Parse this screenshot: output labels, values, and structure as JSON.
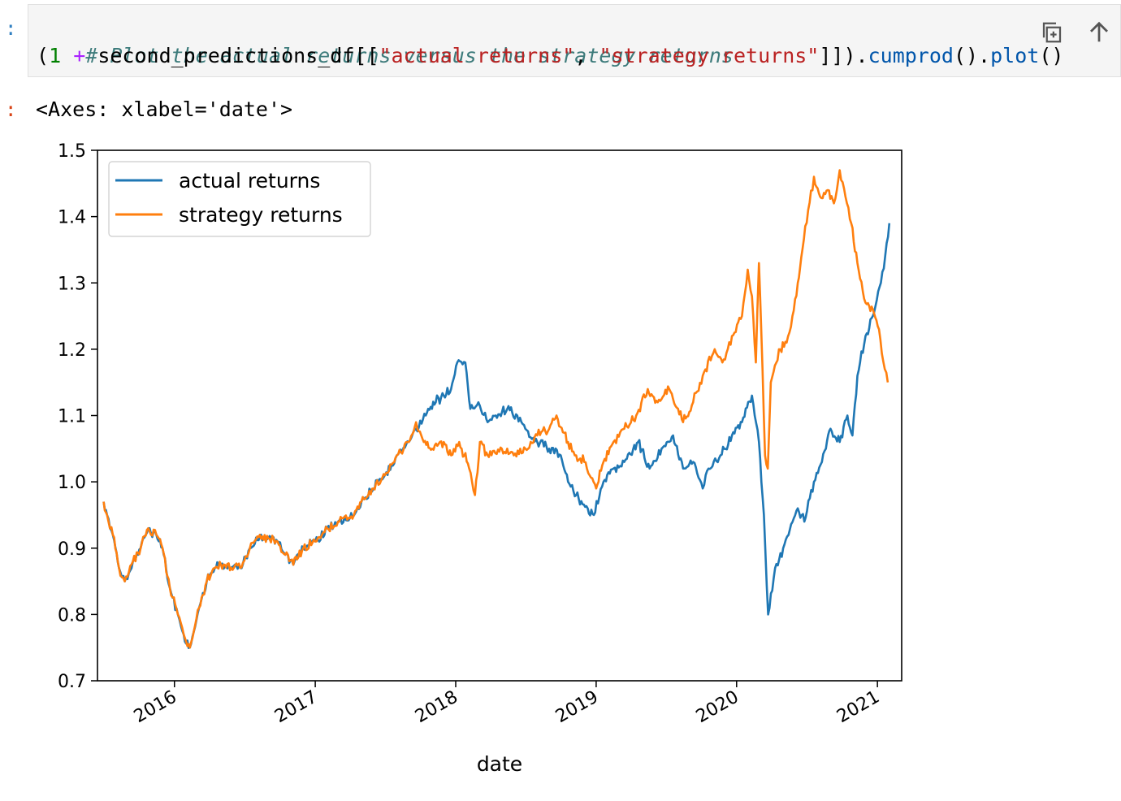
{
  "cell": {
    "input_prompt": ":",
    "output_prompt": ":",
    "code": {
      "comment": "# Plot the actual returns versus the strategy returns",
      "open_paren": "(",
      "one": "1",
      "plus": "+",
      "df": "second_predictions_df[[",
      "str_actual": "\"actual returns\"",
      "comma": ", ",
      "str_strategy": "\"strategy returns\"",
      "close_brackets": "]]).",
      "cumprod": "cumprod",
      "call_dot": "().",
      "plot": "plot",
      "call_end": "()"
    },
    "toolbar": {
      "copy_icon": "copy-icon",
      "move_up_icon": "arrow-up-icon"
    },
    "output_text": "<Axes: xlabel='date'>"
  },
  "chart_data": {
    "type": "line",
    "xlabel": "date",
    "ylabel": "",
    "title": "",
    "ylim": [
      0.7,
      1.5
    ],
    "yticks": [
      "0.7",
      "0.8",
      "0.9",
      "1.0",
      "1.1",
      "1.2",
      "1.3",
      "1.4",
      "1.5"
    ],
    "xticks": [
      "2016",
      "2017",
      "2018",
      "2019",
      "2020",
      "2021"
    ],
    "legend": "upper-left",
    "grid": false,
    "series": [
      {
        "name": "actual returns",
        "color": "#1f77b4",
        "points": [
          [
            "2015-07-01",
            0.97
          ],
          [
            "2015-07-10",
            0.95
          ],
          [
            "2015-07-25",
            0.92
          ],
          [
            "2015-08-10",
            0.87
          ],
          [
            "2015-08-25",
            0.85
          ],
          [
            "2015-09-15",
            0.88
          ],
          [
            "2015-10-05",
            0.9
          ],
          [
            "2015-10-25",
            0.93
          ],
          [
            "2015-11-15",
            0.92
          ],
          [
            "2015-12-01",
            0.9
          ],
          [
            "2015-12-20",
            0.84
          ],
          [
            "2016-01-10",
            0.8
          ],
          [
            "2016-01-25",
            0.77
          ],
          [
            "2016-02-10",
            0.75
          ],
          [
            "2016-03-05",
            0.81
          ],
          [
            "2016-03-25",
            0.85
          ],
          [
            "2016-04-15",
            0.87
          ],
          [
            "2016-05-01",
            0.875
          ],
          [
            "2016-06-20",
            0.87
          ],
          [
            "2016-07-15",
            0.9
          ],
          [
            "2016-08-10",
            0.92
          ],
          [
            "2016-09-01",
            0.915
          ],
          [
            "2016-09-25",
            0.91
          ],
          [
            "2016-10-15",
            0.89
          ],
          [
            "2016-11-05",
            0.875
          ],
          [
            "2016-12-01",
            0.9
          ],
          [
            "2017-01-01",
            0.91
          ],
          [
            "2017-02-01",
            0.93
          ],
          [
            "2017-03-01",
            0.94
          ],
          [
            "2017-04-01",
            0.945
          ],
          [
            "2017-05-01",
            0.97
          ],
          [
            "2017-06-01",
            0.99
          ],
          [
            "2017-07-01",
            1.01
          ],
          [
            "2017-08-01",
            1.04
          ],
          [
            "2017-09-01",
            1.06
          ],
          [
            "2017-09-20",
            1.08
          ],
          [
            "2017-10-15",
            1.1
          ],
          [
            "2017-11-10",
            1.12
          ],
          [
            "2017-12-01",
            1.13
          ],
          [
            "2017-12-20",
            1.14
          ],
          [
            "2018-01-05",
            1.18
          ],
          [
            "2018-01-26",
            1.18
          ],
          [
            "2018-02-08",
            1.11
          ],
          [
            "2018-03-01",
            1.12
          ],
          [
            "2018-03-25",
            1.09
          ],
          [
            "2018-04-15",
            1.1
          ],
          [
            "2018-05-15",
            1.11
          ],
          [
            "2018-06-10",
            1.1
          ],
          [
            "2018-07-01",
            1.08
          ],
          [
            "2018-08-01",
            1.06
          ],
          [
            "2018-09-01",
            1.05
          ],
          [
            "2018-10-01",
            1.04
          ],
          [
            "2018-10-20",
            1.0
          ],
          [
            "2018-11-10",
            0.98
          ],
          [
            "2018-12-10",
            0.96
          ],
          [
            "2018-12-26",
            0.95
          ],
          [
            "2019-01-20",
            1.0
          ],
          [
            "2019-02-15",
            1.02
          ],
          [
            "2019-03-15",
            1.03
          ],
          [
            "2019-04-20",
            1.06
          ],
          [
            "2019-05-20",
            1.02
          ],
          [
            "2019-06-20",
            1.05
          ],
          [
            "2019-07-20",
            1.07
          ],
          [
            "2019-08-15",
            1.02
          ],
          [
            "2019-09-10",
            1.03
          ],
          [
            "2019-10-05",
            0.99
          ],
          [
            "2019-10-20",
            1.02
          ],
          [
            "2019-11-20",
            1.04
          ],
          [
            "2019-12-20",
            1.07
          ],
          [
            "2020-01-15",
            1.09
          ],
          [
            "2020-02-10",
            1.13
          ],
          [
            "2020-02-28",
            1.06
          ],
          [
            "2020-03-12",
            0.95
          ],
          [
            "2020-03-23",
            0.8
          ],
          [
            "2020-04-10",
            0.87
          ],
          [
            "2020-05-01",
            0.9
          ],
          [
            "2020-06-08",
            0.96
          ],
          [
            "2020-06-25",
            0.94
          ],
          [
            "2020-07-20",
            1.0
          ],
          [
            "2020-08-20",
            1.05
          ],
          [
            "2020-09-01",
            1.08
          ],
          [
            "2020-09-25",
            1.06
          ],
          [
            "2020-10-15",
            1.1
          ],
          [
            "2020-10-28",
            1.07
          ],
          [
            "2020-11-10",
            1.16
          ],
          [
            "2020-12-01",
            1.22
          ],
          [
            "2020-12-20",
            1.25
          ],
          [
            "2021-01-10",
            1.3
          ],
          [
            "2021-01-25",
            1.36
          ],
          [
            "2021-02-01",
            1.39
          ]
        ]
      },
      {
        "name": "strategy returns",
        "color": "#ff7f0e",
        "points": [
          [
            "2015-07-01",
            0.97
          ],
          [
            "2015-07-10",
            0.95
          ],
          [
            "2015-07-25",
            0.92
          ],
          [
            "2015-08-10",
            0.87
          ],
          [
            "2015-08-25",
            0.85
          ],
          [
            "2015-09-15",
            0.88
          ],
          [
            "2015-10-05",
            0.9
          ],
          [
            "2015-10-25",
            0.93
          ],
          [
            "2015-11-15",
            0.92
          ],
          [
            "2015-12-01",
            0.9
          ],
          [
            "2015-12-20",
            0.84
          ],
          [
            "2016-01-10",
            0.8
          ],
          [
            "2016-01-25",
            0.77
          ],
          [
            "2016-02-10",
            0.75
          ],
          [
            "2016-03-05",
            0.81
          ],
          [
            "2016-03-25",
            0.85
          ],
          [
            "2016-04-15",
            0.87
          ],
          [
            "2016-05-01",
            0.875
          ],
          [
            "2016-06-20",
            0.87
          ],
          [
            "2016-07-15",
            0.9
          ],
          [
            "2016-08-10",
            0.92
          ],
          [
            "2016-09-01",
            0.915
          ],
          [
            "2016-09-25",
            0.91
          ],
          [
            "2016-10-15",
            0.89
          ],
          [
            "2016-11-05",
            0.875
          ],
          [
            "2016-12-01",
            0.9
          ],
          [
            "2017-01-01",
            0.91
          ],
          [
            "2017-02-01",
            0.93
          ],
          [
            "2017-03-01",
            0.94
          ],
          [
            "2017-04-01",
            0.945
          ],
          [
            "2017-05-01",
            0.97
          ],
          [
            "2017-06-01",
            0.99
          ],
          [
            "2017-07-01",
            1.01
          ],
          [
            "2017-08-01",
            1.04
          ],
          [
            "2017-09-01",
            1.06
          ],
          [
            "2017-09-20",
            1.09
          ],
          [
            "2017-10-10",
            1.06
          ],
          [
            "2017-11-01",
            1.05
          ],
          [
            "2017-12-01",
            1.06
          ],
          [
            "2017-12-20",
            1.04
          ],
          [
            "2018-01-10",
            1.06
          ],
          [
            "2018-02-05",
            1.02
          ],
          [
            "2018-02-20",
            0.98
          ],
          [
            "2018-03-05",
            1.06
          ],
          [
            "2018-03-25",
            1.04
          ],
          [
            "2018-05-01",
            1.05
          ],
          [
            "2018-06-01",
            1.04
          ],
          [
            "2018-07-01",
            1.05
          ],
          [
            "2018-08-01",
            1.07
          ],
          [
            "2018-09-01",
            1.08
          ],
          [
            "2018-09-20",
            1.1
          ],
          [
            "2018-10-20",
            1.06
          ],
          [
            "2018-11-10",
            1.04
          ],
          [
            "2018-12-01",
            1.03
          ],
          [
            "2018-12-15",
            1.01
          ],
          [
            "2019-01-01",
            0.99
          ],
          [
            "2019-01-20",
            1.03
          ],
          [
            "2019-02-15",
            1.06
          ],
          [
            "2019-03-15",
            1.08
          ],
          [
            "2019-04-15",
            1.1
          ],
          [
            "2019-05-15",
            1.14
          ],
          [
            "2019-06-10",
            1.12
          ],
          [
            "2019-07-10",
            1.14
          ],
          [
            "2019-08-15",
            1.09
          ],
          [
            "2019-09-10",
            1.12
          ],
          [
            "2019-10-05",
            1.16
          ],
          [
            "2019-11-05",
            1.2
          ],
          [
            "2019-11-25",
            1.18
          ],
          [
            "2019-12-20",
            1.22
          ],
          [
            "2020-01-15",
            1.25
          ],
          [
            "2020-01-30",
            1.32
          ],
          [
            "2020-02-10",
            1.28
          ],
          [
            "2020-02-20",
            1.18
          ],
          [
            "2020-02-28",
            1.33
          ],
          [
            "2020-03-05",
            1.23
          ],
          [
            "2020-03-15",
            1.04
          ],
          [
            "2020-03-22",
            1.02
          ],
          [
            "2020-03-30",
            1.15
          ],
          [
            "2020-04-20",
            1.2
          ],
          [
            "2020-05-10",
            1.21
          ],
          [
            "2020-05-25",
            1.25
          ],
          [
            "2020-06-08",
            1.3
          ],
          [
            "2020-06-20",
            1.35
          ],
          [
            "2020-07-05",
            1.41
          ],
          [
            "2020-07-20",
            1.46
          ],
          [
            "2020-08-05",
            1.43
          ],
          [
            "2020-08-25",
            1.44
          ],
          [
            "2020-09-10",
            1.42
          ],
          [
            "2020-09-25",
            1.47
          ],
          [
            "2020-10-10",
            1.43
          ],
          [
            "2020-10-25",
            1.39
          ],
          [
            "2020-11-10",
            1.33
          ],
          [
            "2020-12-01",
            1.27
          ],
          [
            "2020-12-20",
            1.26
          ],
          [
            "2021-01-05",
            1.23
          ],
          [
            "2021-01-20",
            1.17
          ],
          [
            "2021-01-28",
            1.15
          ]
        ]
      }
    ]
  }
}
